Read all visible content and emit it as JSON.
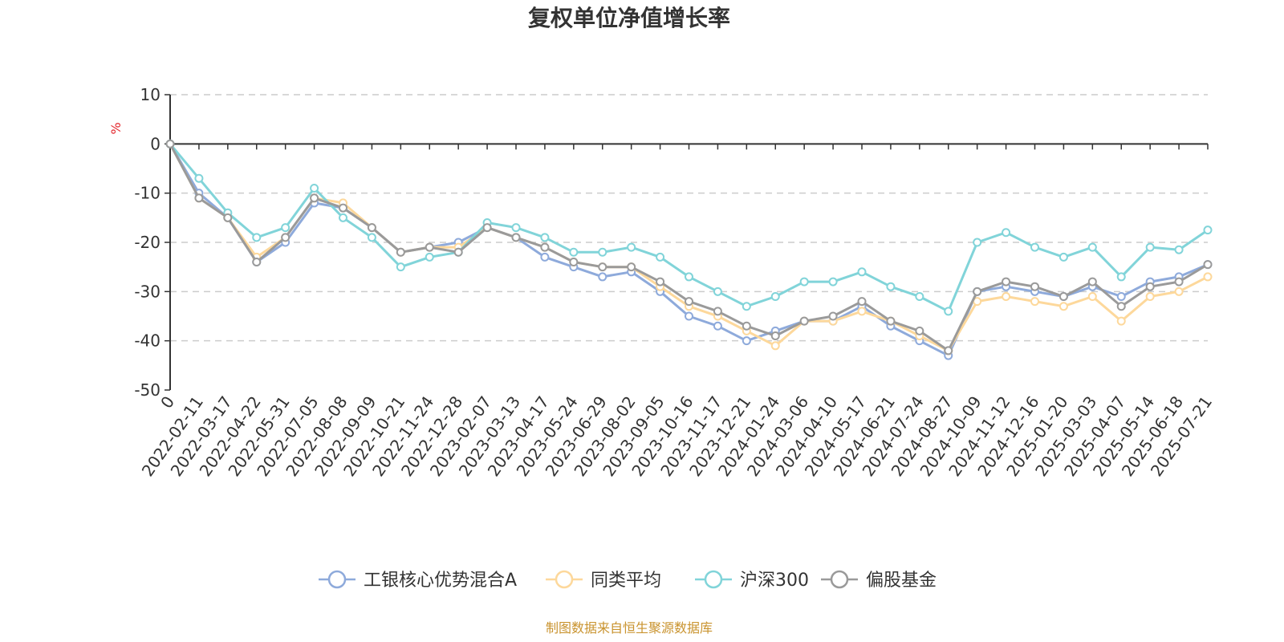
{
  "chart_data": {
    "type": "line",
    "title": "复权单位净值增长率",
    "ylabel": "%",
    "ylim": [
      -50,
      10
    ],
    "yticks": [
      10,
      0,
      -10,
      -20,
      -30,
      -40,
      -50
    ],
    "x_labels": [
      "0",
      "2022-02-11",
      "2022-03-17",
      "2022-04-22",
      "2022-05-31",
      "2022-07-05",
      "2022-08-08",
      "2022-09-09",
      "2022-10-21",
      "2022-11-24",
      "2022-12-28",
      "2023-02-07",
      "2023-03-13",
      "2023-04-17",
      "2023-05-24",
      "2023-06-29",
      "2023-08-02",
      "2023-09-05",
      "2023-10-16",
      "2023-11-17",
      "2023-12-21",
      "2024-01-24",
      "2024-03-06",
      "2024-04-10",
      "2024-05-17",
      "2024-06-21",
      "2024-07-24",
      "2024-08-27",
      "2024-10-09",
      "2024-11-12",
      "2024-12-16",
      "2025-01-20",
      "2025-03-03",
      "2025-04-07",
      "2025-05-14",
      "2025-06-18",
      "2025-07-21"
    ],
    "grid": "horizontal-dashed",
    "legend_position": "bottom-center",
    "series": [
      {
        "name": "工银核心优势混合A",
        "color": "#8eaadb",
        "values": [
          0,
          -10,
          -15,
          -24,
          -20,
          -12,
          -13,
          -17,
          -22,
          -21,
          -20,
          -17,
          -19,
          -23,
          -25,
          -27,
          -26,
          -30,
          -35,
          -37,
          -40,
          -38,
          -36,
          -36,
          -33,
          -37,
          -40,
          -43,
          -30,
          -29,
          -30,
          -31,
          -29,
          -31,
          -28,
          -27,
          -24.5
        ]
      },
      {
        "name": "同类平均",
        "color": "#fdd89b",
        "values": [
          0,
          -11,
          -15,
          -23,
          -19,
          -11,
          -12,
          -17,
          -22,
          -21,
          -21,
          -17,
          -19,
          -21,
          -24,
          -25,
          -25,
          -29,
          -33,
          -35,
          -38,
          -41,
          -36,
          -36,
          -34,
          -36,
          -39,
          -42,
          -32,
          -31,
          -32,
          -33,
          -31,
          -36,
          -31,
          -30,
          -27
        ]
      },
      {
        "name": "沪深300",
        "color": "#81d4d9",
        "values": [
          0,
          -7,
          -14,
          -19,
          -17,
          -9,
          -15,
          -19,
          -25,
          -23,
          -22,
          -16,
          -17,
          -19,
          -22,
          -22,
          -21,
          -23,
          -27,
          -30,
          -33,
          -31,
          -28,
          -28,
          -26,
          -29,
          -31,
          -34,
          -20,
          -18,
          -21,
          -23,
          -21,
          -27,
          -21,
          -21.5,
          -17.5
        ]
      },
      {
        "name": "偏股基金",
        "color": "#9a9a9a",
        "values": [
          0,
          -11,
          -15,
          -24,
          -19,
          -11,
          -13,
          -17,
          -22,
          -21,
          -22,
          -17,
          -19,
          -21,
          -24,
          -25,
          -25,
          -28,
          -32,
          -34,
          -37,
          -39,
          -36,
          -35,
          -32,
          -36,
          -38,
          -42,
          -30,
          -28,
          -29,
          -31,
          -28,
          -33,
          -29,
          -28,
          -24.5
        ]
      }
    ]
  },
  "source_text": "制图数据来自恒生聚源数据库"
}
